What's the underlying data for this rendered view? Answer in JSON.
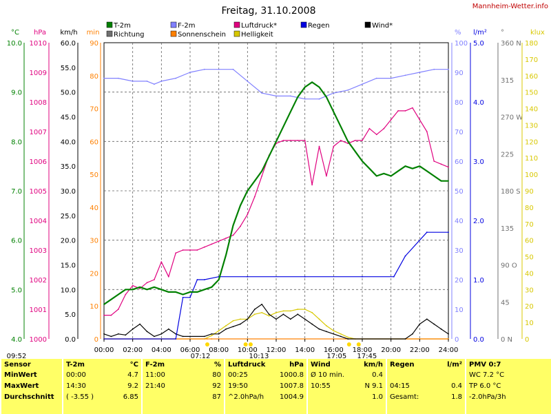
{
  "title": "Freitag, 31.10.2008",
  "site": "Mannheim-Wetter.info",
  "colors": {
    "t2m": "#008000",
    "f2m": "#8080ff",
    "luftdruck": "#e0007f",
    "regen": "#0000e0",
    "wind": "#000000",
    "richtung": "#707070",
    "sonnenschein": "#ff8000",
    "helligkeit": "#d8c800",
    "grid": "#606060",
    "bg": "#ffffff",
    "panel": "#ffff66"
  },
  "legend": [
    {
      "label": "T-2m",
      "key": "t2m"
    },
    {
      "label": "F-2m",
      "key": "f2m"
    },
    {
      "label": "Luftdruck*",
      "key": "luftdruck"
    },
    {
      "label": "Regen",
      "key": "regen"
    },
    {
      "label": "Wind*",
      "key": "wind"
    },
    {
      "label": "Richtung",
      "key": "richtung"
    },
    {
      "label": "Sonnenschein",
      "key": "sonnenschein"
    },
    {
      "label": "Helligkeit",
      "key": "helligkeit"
    }
  ],
  "axes_left": [
    {
      "unit": "°C",
      "key": "t2m",
      "ticks": [
        "10.0",
        "9.0",
        "8.0",
        "7.0",
        "6.0",
        "5.0",
        "4.0"
      ]
    },
    {
      "unit": "hPa",
      "key": "luftdruck",
      "ticks": [
        "1010",
        "1009",
        "1008",
        "1007",
        "1006",
        "1005",
        "1004",
        "1003",
        "1002",
        "1001",
        "1000"
      ]
    },
    {
      "unit": "km/h",
      "key": "wind",
      "ticks": [
        "60.0",
        "55.0",
        "50.0",
        "45.0",
        "40.0",
        "35.0",
        "30.0",
        "25.0",
        "20.0",
        "15.0",
        "10.0",
        "5.0",
        "0.0"
      ]
    },
    {
      "unit": "min",
      "key": "sonnenschein",
      "ticks": [
        "90",
        "80",
        "70",
        "60",
        "50",
        "40",
        "30",
        "20",
        "10",
        "0"
      ]
    }
  ],
  "axes_right": [
    {
      "unit": "%",
      "key": "f2m",
      "ticks": [
        "100",
        "90",
        "80",
        "70",
        "60",
        "50",
        "40",
        "30",
        "20",
        "10",
        "0"
      ]
    },
    {
      "unit": "l/m²",
      "key": "regen",
      "ticks": [
        "5.0",
        "4.0",
        "3.0",
        "2.0",
        "1.0",
        "0.0"
      ]
    },
    {
      "unit": "°",
      "key": "richtung",
      "ticks": [
        "360 N",
        "315",
        "270 W",
        "225",
        "180 S",
        "135",
        "90 O",
        "45",
        "0 N"
      ]
    },
    {
      "unit": "klux",
      "key": "helligkeit",
      "ticks": [
        "180",
        "170",
        "160",
        "150",
        "140",
        "130",
        "120",
        "110",
        "100",
        "90",
        "80",
        "70",
        "60",
        "50",
        "40",
        "30",
        "20",
        "10",
        "0"
      ]
    }
  ],
  "x_ticks": [
    "00:00",
    "02:00",
    "04:00",
    "06:00",
    "08:00",
    "10:00",
    "12:00",
    "14:00",
    "16:00",
    "18:00",
    "20:00",
    "22:00",
    "24:00"
  ],
  "sun_events": [
    {
      "label": "09:52",
      "h": 9.87
    },
    {
      "label": "07:12",
      "h": 7.2
    },
    {
      "label": "10:13",
      "h": 10.22
    },
    {
      "label": "17:05",
      "h": 17.08
    },
    {
      "label": "17:45",
      "h": 17.75
    }
  ],
  "chart_data": {
    "type": "line",
    "title": "Freitag, 31.10.2008",
    "x_unit": "hour of day",
    "xlim": [
      0,
      24
    ],
    "grid": true,
    "legend_position": "top",
    "series": [
      {
        "name": "T-2m",
        "unit": "°C",
        "ylim": [
          4,
          10
        ],
        "points": [
          [
            0,
            4.7
          ],
          [
            0.5,
            4.8
          ],
          [
            1,
            4.9
          ],
          [
            1.5,
            5.0
          ],
          [
            2,
            5.0
          ],
          [
            2.5,
            5.05
          ],
          [
            3,
            5.0
          ],
          [
            3.5,
            5.05
          ],
          [
            4,
            5.0
          ],
          [
            4.5,
            4.95
          ],
          [
            5,
            4.95
          ],
          [
            5.5,
            4.9
          ],
          [
            6,
            4.95
          ],
          [
            6.5,
            4.95
          ],
          [
            7,
            5.0
          ],
          [
            7.5,
            5.05
          ],
          [
            8,
            5.2
          ],
          [
            8.5,
            5.7
          ],
          [
            9,
            6.3
          ],
          [
            9.5,
            6.7
          ],
          [
            10,
            7.0
          ],
          [
            10.5,
            7.2
          ],
          [
            11,
            7.4
          ],
          [
            11.5,
            7.7
          ],
          [
            12,
            8.0
          ],
          [
            12.5,
            8.3
          ],
          [
            13,
            8.6
          ],
          [
            13.5,
            8.9
          ],
          [
            14,
            9.1
          ],
          [
            14.5,
            9.2
          ],
          [
            15,
            9.1
          ],
          [
            15.5,
            8.9
          ],
          [
            16,
            8.6
          ],
          [
            16.5,
            8.3
          ],
          [
            17,
            8.0
          ],
          [
            17.5,
            7.8
          ],
          [
            18,
            7.6
          ],
          [
            18.5,
            7.45
          ],
          [
            19,
            7.3
          ],
          [
            19.5,
            7.35
          ],
          [
            20,
            7.3
          ],
          [
            20.5,
            7.4
          ],
          [
            21,
            7.5
          ],
          [
            21.5,
            7.45
          ],
          [
            22,
            7.5
          ],
          [
            22.5,
            7.4
          ],
          [
            23,
            7.3
          ],
          [
            23.5,
            7.2
          ],
          [
            24,
            7.2
          ]
        ]
      },
      {
        "name": "F-2m",
        "unit": "%",
        "ylim": [
          0,
          100
        ],
        "points": [
          [
            0,
            88
          ],
          [
            1,
            88
          ],
          [
            2,
            87
          ],
          [
            3,
            87
          ],
          [
            3.5,
            86
          ],
          [
            4,
            87
          ],
          [
            5,
            88
          ],
          [
            6,
            90
          ],
          [
            7,
            91
          ],
          [
            8,
            91
          ],
          [
            9,
            91
          ],
          [
            10,
            87
          ],
          [
            11,
            83
          ],
          [
            12,
            82
          ],
          [
            13,
            82
          ],
          [
            14,
            81
          ],
          [
            15,
            81
          ],
          [
            16,
            83
          ],
          [
            17,
            84
          ],
          [
            18,
            86
          ],
          [
            19,
            88
          ],
          [
            20,
            88
          ],
          [
            21,
            89
          ],
          [
            22,
            90
          ],
          [
            23,
            91
          ],
          [
            24,
            91
          ]
        ]
      },
      {
        "name": "Luftdruck*",
        "unit": "hPa",
        "ylim": [
          1000,
          1010
        ],
        "points": [
          [
            0,
            1000.8
          ],
          [
            0.5,
            1000.8
          ],
          [
            1,
            1001.0
          ],
          [
            1.5,
            1001.5
          ],
          [
            2,
            1001.8
          ],
          [
            2.5,
            1001.7
          ],
          [
            3,
            1001.9
          ],
          [
            3.5,
            1002.0
          ],
          [
            4,
            1002.6
          ],
          [
            4.5,
            1002.1
          ],
          [
            5,
            1002.9
          ],
          [
            5.5,
            1003.0
          ],
          [
            6,
            1003.0
          ],
          [
            6.5,
            1003.0
          ],
          [
            7,
            1003.1
          ],
          [
            7.5,
            1003.2
          ],
          [
            8,
            1003.3
          ],
          [
            8.5,
            1003.4
          ],
          [
            9,
            1003.5
          ],
          [
            9.5,
            1003.8
          ],
          [
            10,
            1004.2
          ],
          [
            10.5,
            1004.8
          ],
          [
            11,
            1005.5
          ],
          [
            11.5,
            1006.2
          ],
          [
            12,
            1006.6
          ],
          [
            12.5,
            1006.7
          ],
          [
            13,
            1006.7
          ],
          [
            13.5,
            1006.7
          ],
          [
            14,
            1006.7
          ],
          [
            14.5,
            1005.2
          ],
          [
            15,
            1006.5
          ],
          [
            15.5,
            1005.5
          ],
          [
            16,
            1006.5
          ],
          [
            16.5,
            1006.7
          ],
          [
            17,
            1006.6
          ],
          [
            17.5,
            1006.7
          ],
          [
            18,
            1006.7
          ],
          [
            18.5,
            1007.1
          ],
          [
            19,
            1006.9
          ],
          [
            19.5,
            1007.1
          ],
          [
            20,
            1007.4
          ],
          [
            20.5,
            1007.7
          ],
          [
            21,
            1007.7
          ],
          [
            21.5,
            1007.8
          ],
          [
            22,
            1007.4
          ],
          [
            22.5,
            1007.0
          ],
          [
            23,
            1006.0
          ],
          [
            23.5,
            1005.9
          ],
          [
            24,
            1005.8
          ]
        ]
      },
      {
        "name": "Regen",
        "unit": "l/m²",
        "ylim": [
          0,
          5
        ],
        "points": [
          [
            0,
            0
          ],
          [
            5,
            0
          ],
          [
            5.5,
            0.7
          ],
          [
            6,
            0.7
          ],
          [
            6.5,
            1.0
          ],
          [
            7,
            1.0
          ],
          [
            8,
            1.05
          ],
          [
            10,
            1.05
          ],
          [
            14,
            1.05
          ],
          [
            18,
            1.05
          ],
          [
            20.2,
            1.05
          ],
          [
            21,
            1.4
          ],
          [
            22.5,
            1.8
          ],
          [
            24,
            1.8
          ]
        ]
      },
      {
        "name": "Wind*",
        "unit": "km/h",
        "ylim": [
          0,
          60
        ],
        "points": [
          [
            0,
            1
          ],
          [
            0.5,
            0.5
          ],
          [
            1,
            1
          ],
          [
            1.5,
            0.8
          ],
          [
            2,
            2
          ],
          [
            2.5,
            3
          ],
          [
            3,
            1.5
          ],
          [
            3.5,
            0.5
          ],
          [
            4,
            1
          ],
          [
            4.5,
            2
          ],
          [
            5,
            1
          ],
          [
            5.5,
            0.5
          ],
          [
            6,
            0.5
          ],
          [
            7,
            0.5
          ],
          [
            7.5,
            1
          ],
          [
            8,
            1
          ],
          [
            8.5,
            2
          ],
          [
            9,
            2.5
          ],
          [
            9.5,
            3
          ],
          [
            10,
            4
          ],
          [
            10.5,
            6
          ],
          [
            11,
            7
          ],
          [
            11.5,
            5
          ],
          [
            12,
            4
          ],
          [
            12.5,
            5
          ],
          [
            13,
            4
          ],
          [
            13.5,
            5
          ],
          [
            14,
            4
          ],
          [
            14.5,
            3
          ],
          [
            15,
            2
          ],
          [
            15.5,
            1.5
          ],
          [
            16,
            1
          ],
          [
            16.5,
            0.5
          ],
          [
            17,
            0
          ],
          [
            20,
            0
          ],
          [
            21,
            0
          ],
          [
            21.5,
            1
          ],
          [
            22,
            3
          ],
          [
            22.5,
            4
          ],
          [
            23,
            3
          ],
          [
            23.5,
            2
          ],
          [
            24,
            1
          ]
        ]
      },
      {
        "name": "Sonnenschein",
        "unit": "min",
        "ylim": [
          0,
          90
        ],
        "points": [
          [
            0,
            0
          ],
          [
            7.2,
            0
          ],
          [
            7.5,
            0
          ],
          [
            17,
            0
          ],
          [
            24,
            0
          ]
        ]
      },
      {
        "name": "Helligkeit",
        "unit": "klux",
        "ylim": [
          0,
          180
        ],
        "points": [
          [
            0,
            0
          ],
          [
            7,
            0
          ],
          [
            7.5,
            2
          ],
          [
            8,
            5
          ],
          [
            8.5,
            8
          ],
          [
            9,
            11
          ],
          [
            9.5,
            12
          ],
          [
            10,
            12
          ],
          [
            10.5,
            15
          ],
          [
            11,
            16
          ],
          [
            11.5,
            14
          ],
          [
            12,
            16
          ],
          [
            12.5,
            17
          ],
          [
            13,
            17
          ],
          [
            13.5,
            18
          ],
          [
            14,
            18
          ],
          [
            14.5,
            16
          ],
          [
            15,
            12
          ],
          [
            15.5,
            8
          ],
          [
            16,
            5
          ],
          [
            16.5,
            3
          ],
          [
            17,
            1
          ],
          [
            17.5,
            0
          ],
          [
            24,
            0
          ]
        ]
      }
    ]
  },
  "stats": {
    "columns": [
      {
        "header": "Sensor",
        "unit": "",
        "rows": [
          "MinWert",
          "MaxWert",
          "Durchschnitt"
        ]
      },
      {
        "header": "T-2m",
        "unit": "°C",
        "rows": [
          [
            "00:00",
            "4.7"
          ],
          [
            "14:30",
            "9.2"
          ],
          [
            "( -3.55 )",
            "6.85"
          ]
        ]
      },
      {
        "header": "F-2m",
        "unit": "%",
        "rows": [
          [
            "11:00",
            "80"
          ],
          [
            "21:40",
            "92"
          ],
          [
            "",
            "87"
          ]
        ]
      },
      {
        "header": "Luftdruck",
        "unit": "hPa",
        "rows": [
          [
            "00:25",
            "1000.8"
          ],
          [
            "19:50",
            "1007.8"
          ],
          [
            "^2.0hPa/h",
            "1004.9"
          ]
        ]
      },
      {
        "header": "Wind",
        "unit": "km/h",
        "rows": [
          [
            "Ø 10 min.",
            "0.4"
          ],
          [
            "10:55",
            "N 9.1"
          ],
          [
            "",
            "1.0"
          ]
        ]
      },
      {
        "header": "Regen",
        "unit": "l/m²",
        "rows": [
          [
            "",
            ""
          ],
          [
            "04:15",
            "0.4"
          ],
          [
            "Gesamt:",
            "1.8"
          ]
        ]
      },
      {
        "header": "PMV 0:7",
        "unit": "",
        "rows": [
          "WC 7.2 °C",
          "TP 6.0 °C",
          "-2.0hPa/3h"
        ]
      }
    ]
  }
}
